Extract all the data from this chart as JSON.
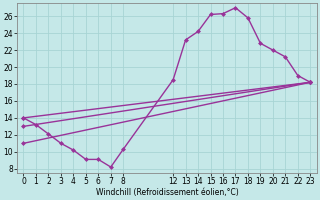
{
  "xlabel": "Windchill (Refroidissement éolien,°C)",
  "background_color": "#c5e8e8",
  "grid_color": "#a8d4d4",
  "line_color": "#993399",
  "xlim": [
    -0.5,
    23.5
  ],
  "ylim": [
    7.5,
    27.5
  ],
  "yticks": [
    8,
    10,
    12,
    14,
    16,
    18,
    20,
    22,
    24,
    26
  ],
  "xticks": [
    0,
    1,
    2,
    3,
    4,
    5,
    6,
    7,
    8,
    12,
    13,
    14,
    15,
    16,
    17,
    18,
    19,
    20,
    21,
    22,
    23
  ],
  "wiggly_x": [
    0,
    1,
    2,
    3,
    4,
    5,
    6,
    7,
    8,
    12,
    13,
    14,
    15,
    16,
    17,
    18,
    19,
    20,
    21,
    22,
    23
  ],
  "wiggly_y": [
    14.0,
    13.2,
    12.1,
    11.0,
    10.2,
    9.1,
    9.1,
    8.2,
    10.3,
    18.5,
    23.2,
    24.2,
    26.2,
    26.3,
    27.0,
    25.8,
    22.8,
    22.0,
    21.2,
    19.0,
    18.2
  ],
  "line1_x": [
    0,
    23
  ],
  "line1_y": [
    14.0,
    18.2
  ],
  "line2_x": [
    0,
    23
  ],
  "line2_y": [
    13.0,
    18.2
  ],
  "line3_x": [
    0,
    23
  ],
  "line3_y": [
    11.0,
    18.2
  ],
  "marker": "D",
  "markersize": 2.5,
  "linewidth": 1.0
}
